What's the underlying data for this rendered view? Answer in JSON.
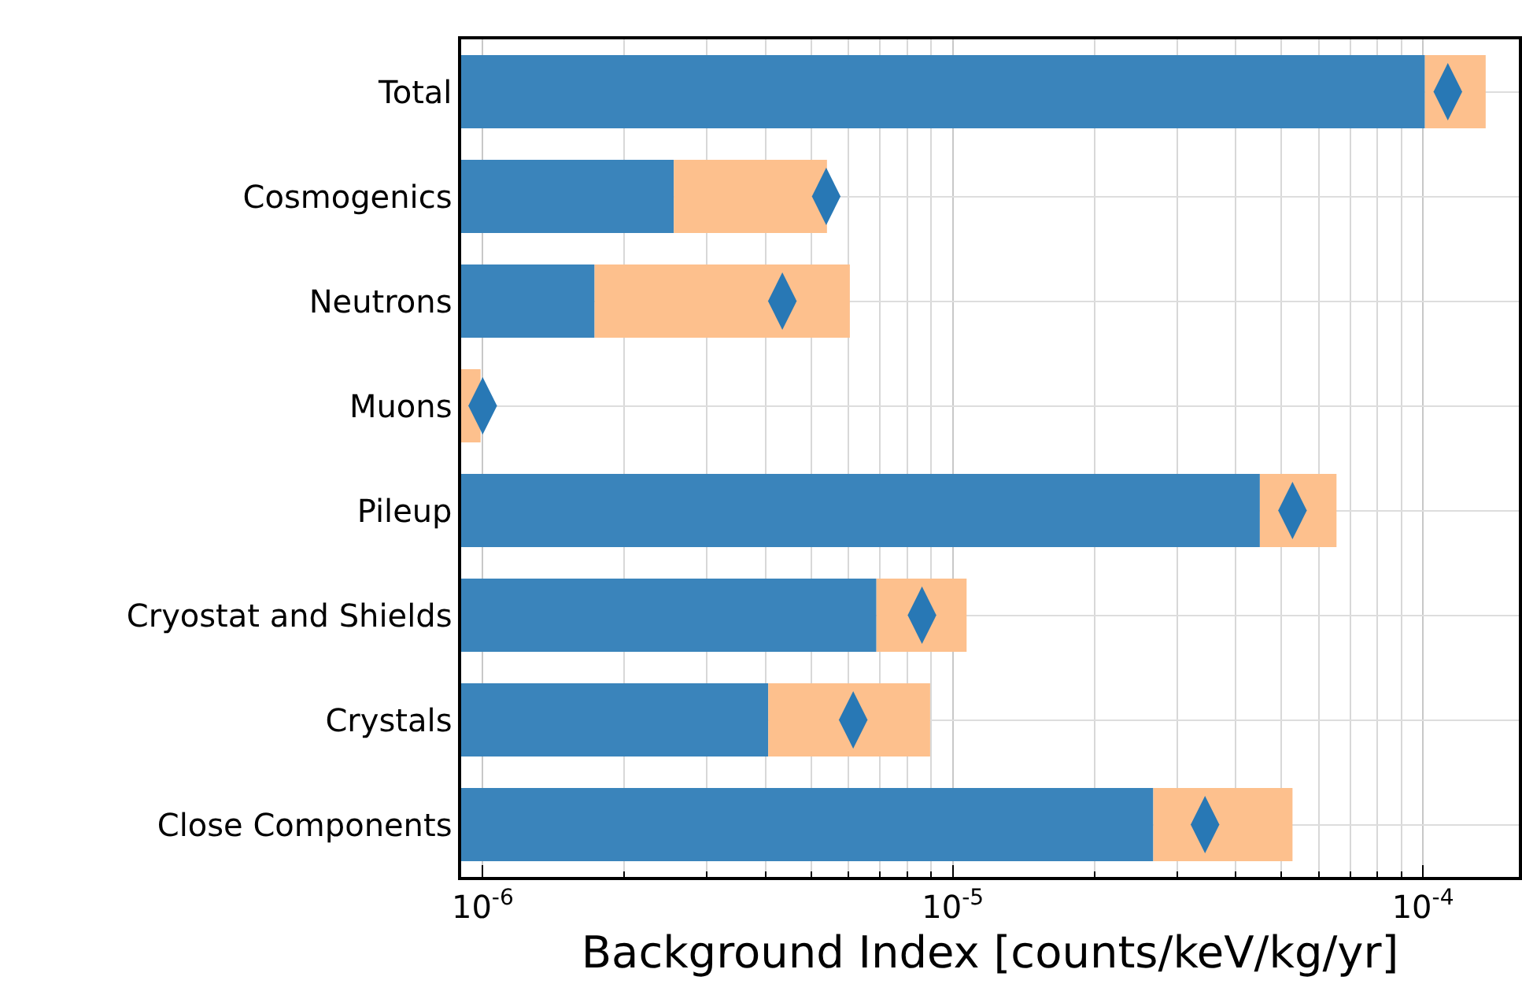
{
  "chart_data": {
    "type": "bar",
    "orientation": "horizontal",
    "xlabel": "Background Index [counts/keV/kg/yr]",
    "categories": [
      "Total",
      "Cosmogenics",
      "Neutrons",
      "Muons",
      "Pileup",
      "Cryostat and Shields",
      "Crystals",
      "Close Components"
    ],
    "log": "x",
    "xlim": [
      9e-07,
      0.00016
    ],
    "xticks": [
      {
        "value": 1e-06,
        "label": "10$^{-6}$"
      },
      {
        "value": 1e-05,
        "label": "10$^{-5}$"
      },
      {
        "value": 0.0001,
        "label": "10$^{-4}$"
      }
    ],
    "grid": true,
    "stacked": true,
    "series": [
      {
        "color": "#3a84bb",
        "values": [
          0.000101,
          2.55e-06,
          1.73e-06,
          null,
          4.5e-05,
          6.88e-06,
          4.05e-06,
          2.67e-05
        ]
      },
      {
        "color": "#fdc08d",
        "values": [
          3.5e-05,
          2.85e-06,
          4.31e-06,
          9.9e-07,
          2.05e-05,
          3.82e-06,
          4.9e-06,
          2.61e-05
        ]
      },
      {
        "type": "scatter",
        "color": "#2878b5",
        "marker": "diamond",
        "values": [
          0.000113,
          5.38e-06,
          4.34e-06,
          1e-06,
          5.28e-05,
          8.6e-06,
          6.14e-06,
          3.44e-05
        ]
      }
    ]
  }
}
